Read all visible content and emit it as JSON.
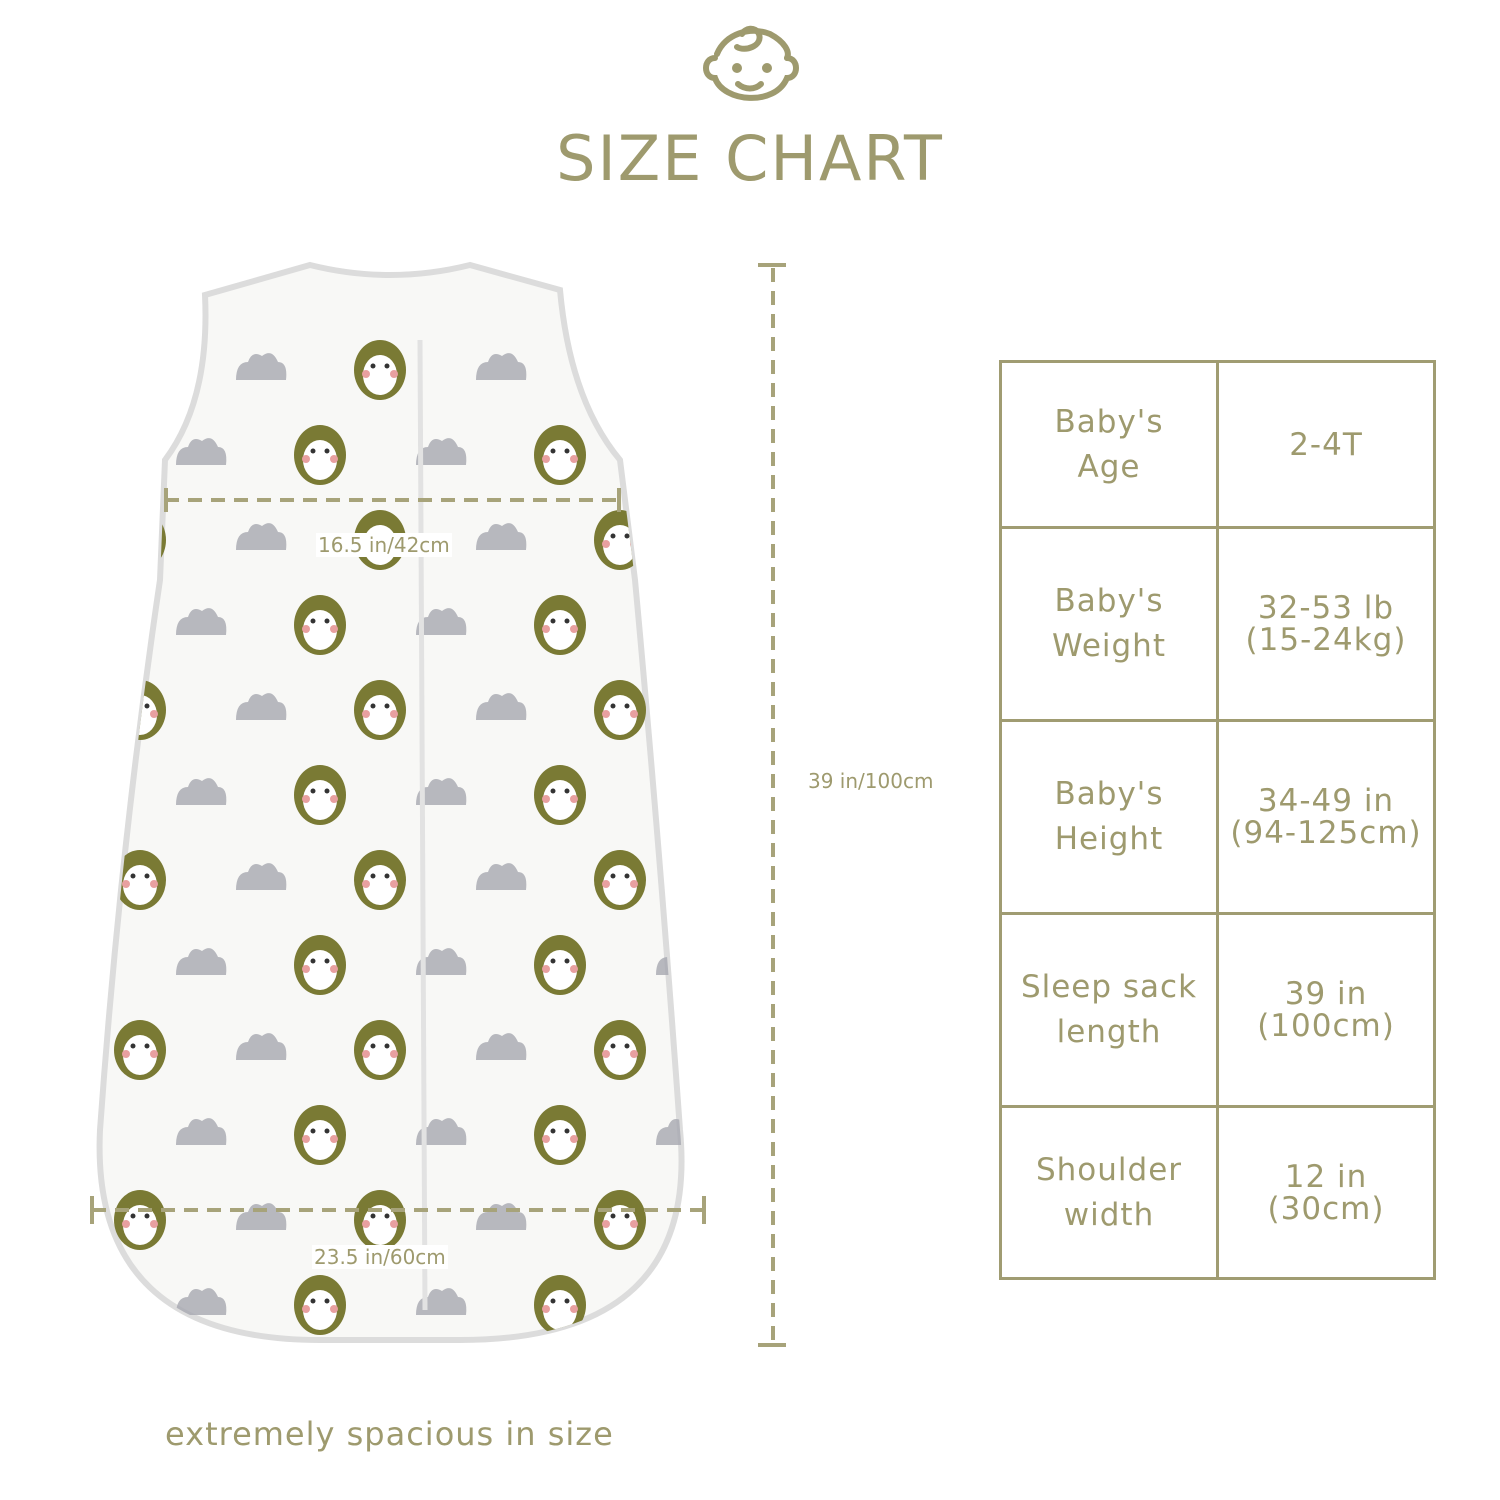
{
  "header": {
    "title": "SIZE CHART",
    "icon": "baby-face-icon"
  },
  "colors": {
    "accent": "#9e9a6e",
    "owl": "#7a7a34",
    "cloud": "#a6a8b0"
  },
  "dimensions": {
    "chest_width": "16.5 in/42cm",
    "bottom_width": "23.5 in/60cm",
    "length": "39 in/100cm"
  },
  "table": {
    "rows": [
      {
        "label": [
          "Baby's",
          "Age"
        ],
        "value": [
          "2-4T"
        ]
      },
      {
        "label": [
          "Baby's",
          "Weight"
        ],
        "value": [
          "32-53 lb",
          "(15-24kg)"
        ]
      },
      {
        "label": [
          "Baby's",
          "Height"
        ],
        "value": [
          "34-49 in",
          "(94-125cm)"
        ]
      },
      {
        "label": [
          "Sleep sack",
          "length"
        ],
        "value": [
          "39 in",
          "(100cm)"
        ]
      },
      {
        "label": [
          "Shoulder",
          "width"
        ],
        "value": [
          "12 in",
          "(30cm)"
        ]
      }
    ]
  },
  "footer": {
    "text": "extremely spacious in size"
  }
}
